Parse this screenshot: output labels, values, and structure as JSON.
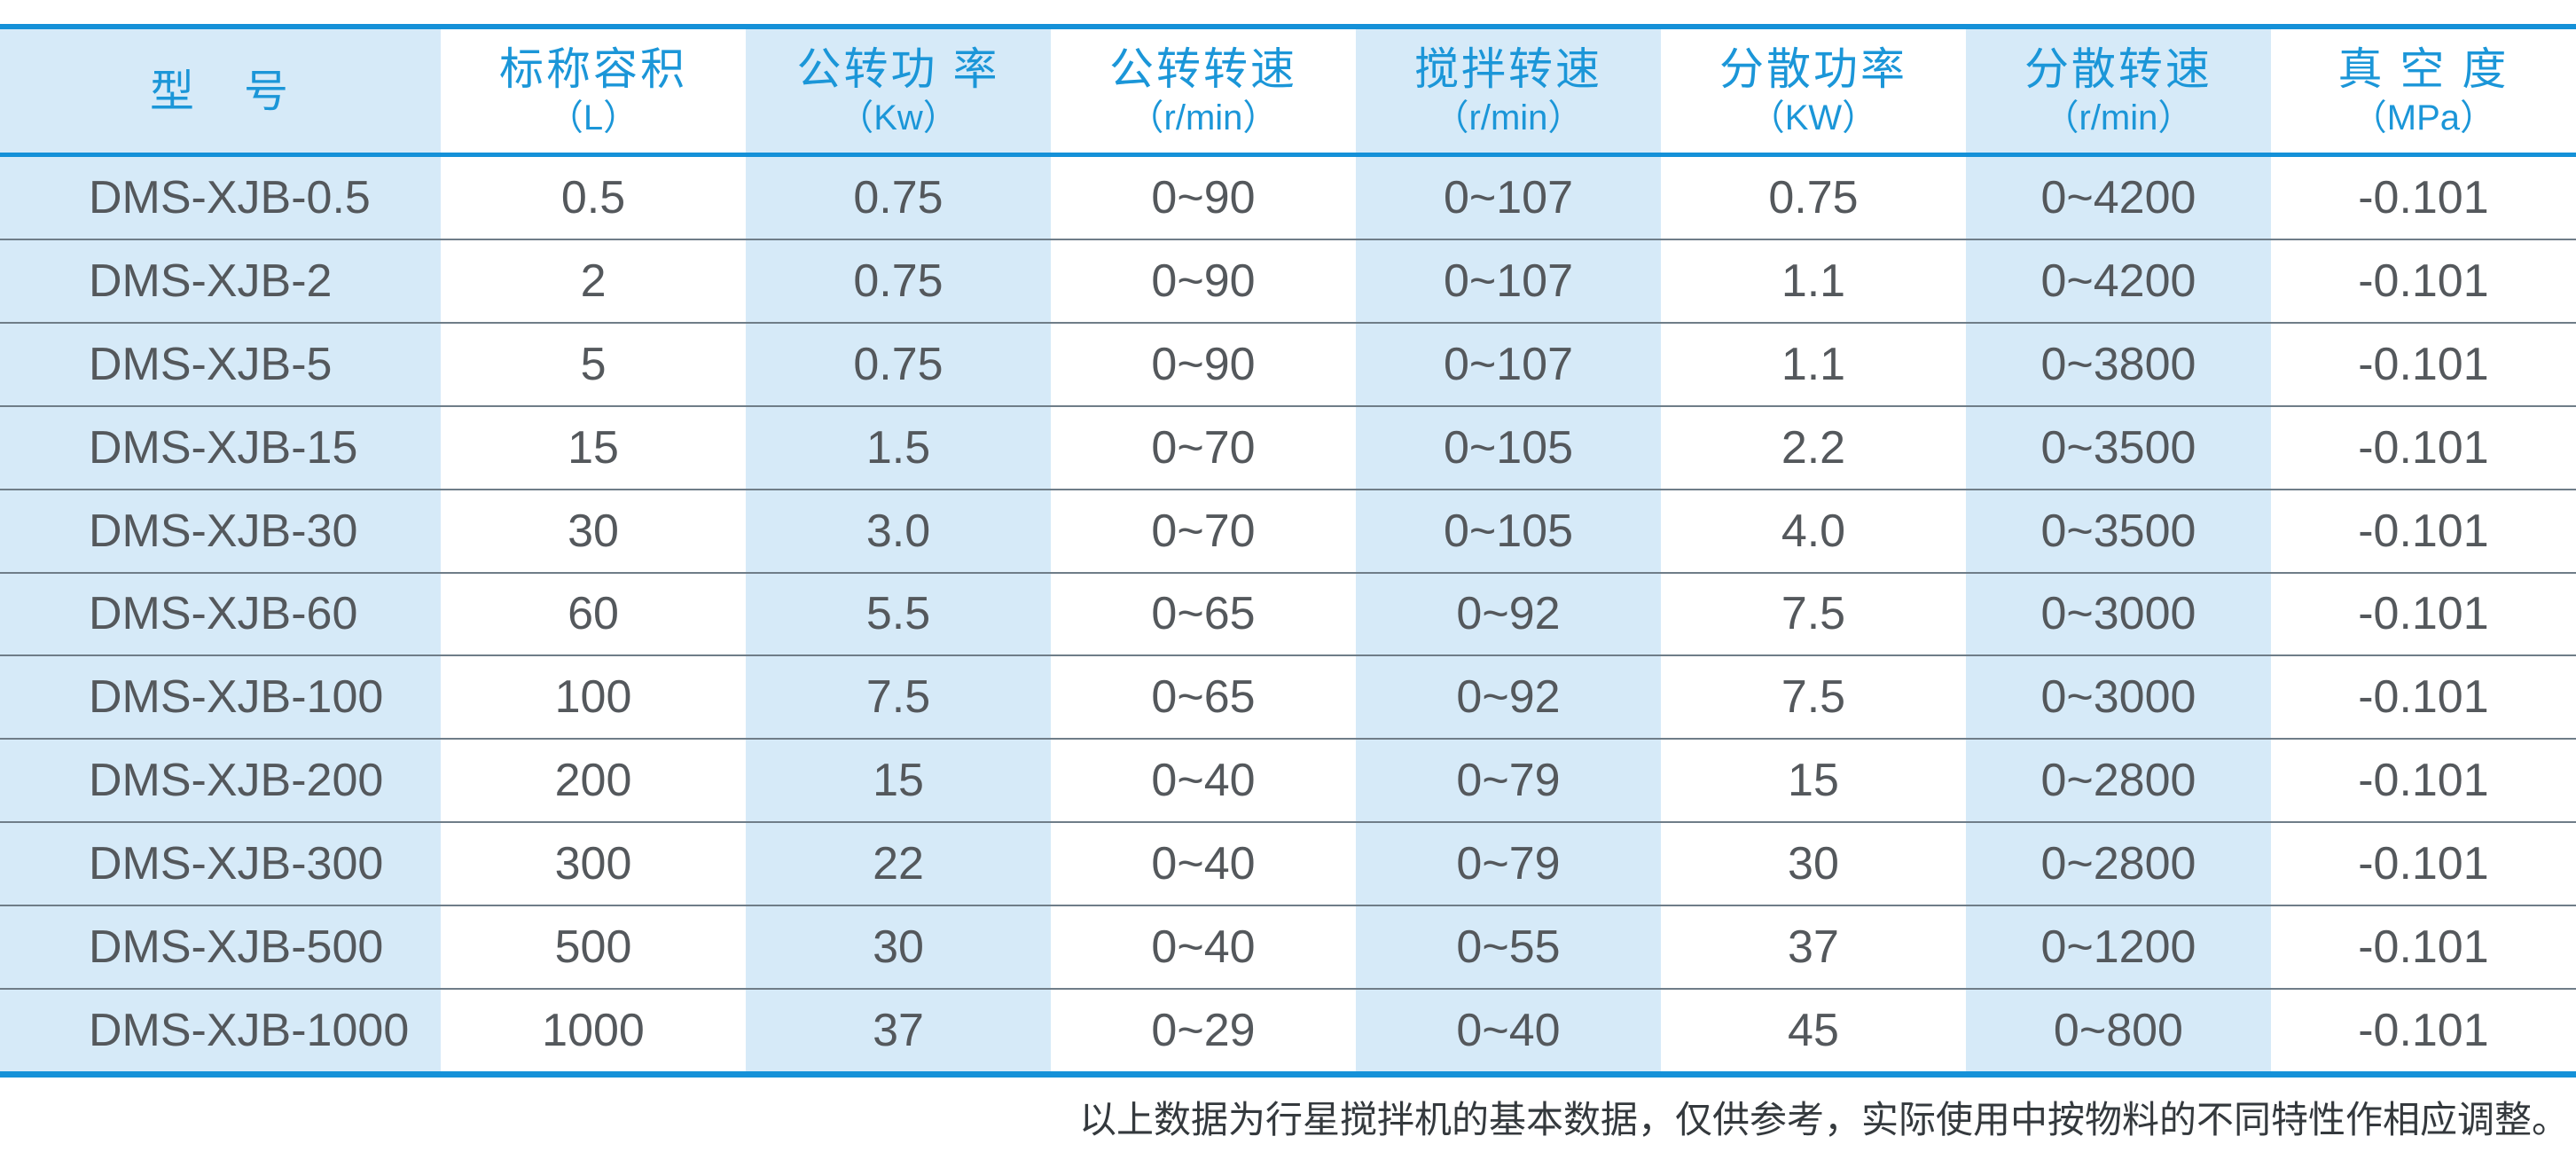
{
  "table": {
    "columns": [
      {
        "title": "型　号",
        "unit": ""
      },
      {
        "title": "标称容积",
        "unit": "（L）"
      },
      {
        "title": "公转功 率",
        "unit": "（Kw）"
      },
      {
        "title": "公转转速",
        "unit": "（r/min）"
      },
      {
        "title": "搅拌转速",
        "unit": "（r/min）"
      },
      {
        "title": "分散功率",
        "unit": "（KW）"
      },
      {
        "title": "分散转速",
        "unit": "（r/min）"
      },
      {
        "title": "真 空 度",
        "unit": "（MPa）"
      }
    ],
    "rows": [
      [
        "DMS-XJB-0.5",
        "0.5",
        "0.75",
        "0~90",
        "0~107",
        "0.75",
        "0~4200",
        "-0.101"
      ],
      [
        "DMS-XJB-2",
        "2",
        "0.75",
        "0~90",
        "0~107",
        "1.1",
        "0~4200",
        "-0.101"
      ],
      [
        "DMS-XJB-5",
        "5",
        "0.75",
        "0~90",
        "0~107",
        "1.1",
        "0~3800",
        "-0.101"
      ],
      [
        "DMS-XJB-15",
        "15",
        "1.5",
        "0~70",
        "0~105",
        "2.2",
        "0~3500",
        "-0.101"
      ],
      [
        "DMS-XJB-30",
        "30",
        "3.0",
        "0~70",
        "0~105",
        "4.0",
        "0~3500",
        "-0.101"
      ],
      [
        "DMS-XJB-60",
        "60",
        "5.5",
        "0~65",
        "0~92",
        "7.5",
        "0~3000",
        "-0.101"
      ],
      [
        "DMS-XJB-100",
        "100",
        "7.5",
        "0~65",
        "0~92",
        "7.5",
        "0~3000",
        "-0.101"
      ],
      [
        "DMS-XJB-200",
        "200",
        "15",
        "0~40",
        "0~79",
        "15",
        "0~2800",
        "-0.101"
      ],
      [
        "DMS-XJB-300",
        "300",
        "22",
        "0~40",
        "0~79",
        "30",
        "0~2800",
        "-0.101"
      ],
      [
        "DMS-XJB-500",
        "500",
        "30",
        "0~40",
        "0~55",
        "37",
        "0~1200",
        "-0.101"
      ],
      [
        "DMS-XJB-1000",
        "1000",
        "37",
        "0~29",
        "0~40",
        "45",
        "0~800",
        "-0.101"
      ]
    ]
  },
  "footer": {
    "note": "以上数据为行星搅拌机的基本数据，仅供参考，实际使用中按物料的不同特性作相应调整。"
  },
  "colors": {
    "accent": "#1591d8",
    "header_text": "#1b96d8",
    "stripe": "#d6eaf8",
    "divider": "#6f7d88",
    "data_text": "#54585c",
    "footer_text": "#34393d"
  }
}
